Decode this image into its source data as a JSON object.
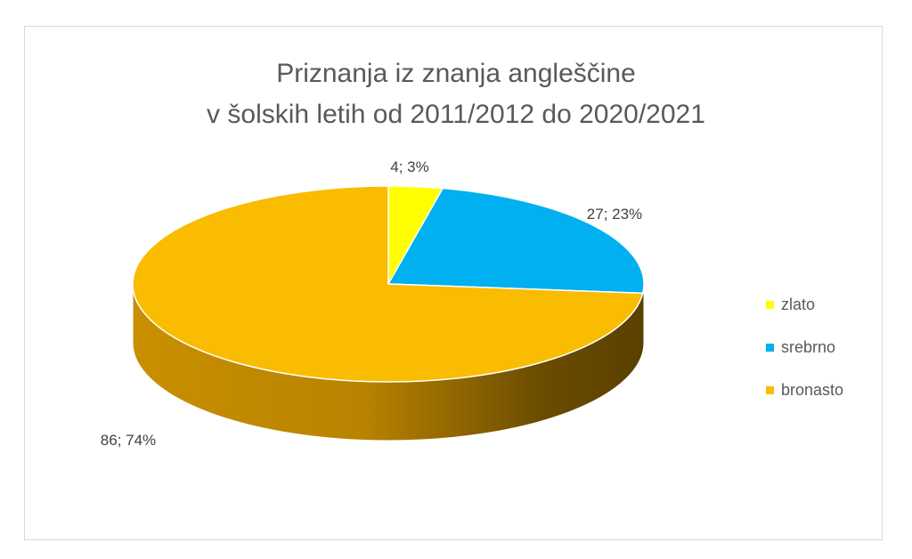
{
  "chart_data": {
    "type": "pie",
    "title_lines": [
      "Priznanja iz znanja angleščine",
      "v šolskih letih od 2011/2012 do 2020/2021"
    ],
    "slices": [
      {
        "name": "zlato",
        "value": 4,
        "percent": 3,
        "label": "4; 3%",
        "color": "#FFFF00"
      },
      {
        "name": "srebrno",
        "value": 27,
        "percent": 23,
        "label": "27; 23%",
        "color": "#00B0F0"
      },
      {
        "name": "bronasto",
        "value": 86,
        "percent": 74,
        "label": "86; 74%",
        "color": "#F9BC00"
      }
    ],
    "legend_position": "right",
    "style": "3d-pie"
  }
}
